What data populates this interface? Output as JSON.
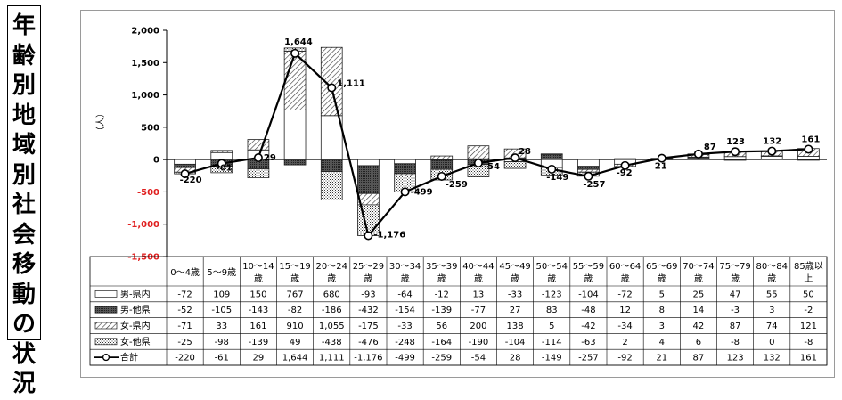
{
  "page_title": "年齢別地域別社会移動の状況",
  "chart_data": {
    "type": "bar",
    "subtype": "stacked-bar-with-line",
    "ylabel": "（人）",
    "ylim": [
      -1500,
      2000
    ],
    "yticks": [
      2000,
      1500,
      1000,
      500,
      0,
      -500,
      -1000,
      -1500
    ],
    "ytick_labels": [
      "2,000",
      "1,500",
      "1,000",
      "500",
      "0",
      "-500",
      "-1,000",
      "-1,500"
    ],
    "grid": false,
    "categories": [
      "0～4歳",
      "5～9歳",
      "10～14歳",
      "15～19歳",
      "20～24歳",
      "25～29歳",
      "30～34歳",
      "35～39歳",
      "40～44歳",
      "45～49歳",
      "50～54歳",
      "55～59歳",
      "60～64歳",
      "65～69歳",
      "70～74歳",
      "75～79歳",
      "80～84歳",
      "85歳以上"
    ],
    "series": [
      {
        "name": "男-県内",
        "kind": "bar",
        "pattern": "white",
        "values": [
          -72,
          109,
          150,
          767,
          680,
          -93,
          -64,
          -12,
          13,
          -33,
          -123,
          -104,
          -72,
          5,
          25,
          47,
          55,
          50
        ]
      },
      {
        "name": "男-他県",
        "kind": "bar",
        "pattern": "dense",
        "values": [
          -52,
          -105,
          -143,
          -82,
          -186,
          -432,
          -154,
          -139,
          -77,
          27,
          83,
          -48,
          12,
          8,
          14,
          -3,
          3,
          -2
        ]
      },
      {
        "name": "女-県内",
        "kind": "bar",
        "pattern": "diagonal",
        "values": [
          -71,
          33,
          161,
          910,
          1055,
          -175,
          -33,
          56,
          200,
          138,
          5,
          -42,
          -34,
          3,
          42,
          87,
          74,
          121
        ]
      },
      {
        "name": "女-他県",
        "kind": "bar",
        "pattern": "dotted",
        "values": [
          -25,
          -98,
          -139,
          49,
          -438,
          -476,
          -248,
          -164,
          -190,
          -104,
          -114,
          -63,
          2,
          4,
          6,
          -8,
          0,
          -8
        ]
      },
      {
        "name": "合計",
        "kind": "line",
        "values": [
          -220,
          -61,
          29,
          1644,
          1111,
          -1176,
          -499,
          -259,
          -54,
          28,
          -149,
          -257,
          -92,
          21,
          87,
          123,
          132,
          161
        ]
      }
    ],
    "data_labels": [
      "-220",
      "-61",
      "29",
      "1,644",
      "1,111",
      "-1,176",
      "-499",
      "-259",
      "-54",
      "28",
      "-149",
      "-257",
      "-92",
      "21",
      "87",
      "123",
      "132",
      "161"
    ],
    "table": {
      "rows": [
        {
          "legend": "男-県内",
          "cells": [
            "-72",
            "109",
            "150",
            "767",
            "680",
            "-93",
            "-64",
            "-12",
            "13",
            "-33",
            "-123",
            "-104",
            "-72",
            "5",
            "25",
            "47",
            "55",
            "50"
          ]
        },
        {
          "legend": "男-他県",
          "cells": [
            "-52",
            "-105",
            "-143",
            "-82",
            "-186",
            "-432",
            "-154",
            "-139",
            "-77",
            "27",
            "83",
            "-48",
            "12",
            "8",
            "14",
            "-3",
            "3",
            "-2"
          ]
        },
        {
          "legend": "女-県内",
          "cells": [
            "-71",
            "33",
            "161",
            "910",
            "1,055",
            "-175",
            "-33",
            "56",
            "200",
            "138",
            "5",
            "-42",
            "-34",
            "3",
            "42",
            "87",
            "74",
            "121"
          ]
        },
        {
          "legend": "女-他県",
          "cells": [
            "-25",
            "-98",
            "-139",
            "49",
            "-438",
            "-476",
            "-248",
            "-164",
            "-190",
            "-104",
            "-114",
            "-63",
            "2",
            "4",
            "6",
            "-8",
            "0",
            "-8"
          ]
        },
        {
          "legend": "合計",
          "cells": [
            "-220",
            "-61",
            "29",
            "1,644",
            "1,111",
            "-1,176",
            "-499",
            "-259",
            "-54",
            "28",
            "-149",
            "-257",
            "-92",
            "21",
            "87",
            "123",
            "132",
            "161"
          ]
        }
      ]
    },
    "colors": {
      "axis": "#000000",
      "negative_tick": "#e02020",
      "frame": "#9a9a9a"
    }
  }
}
